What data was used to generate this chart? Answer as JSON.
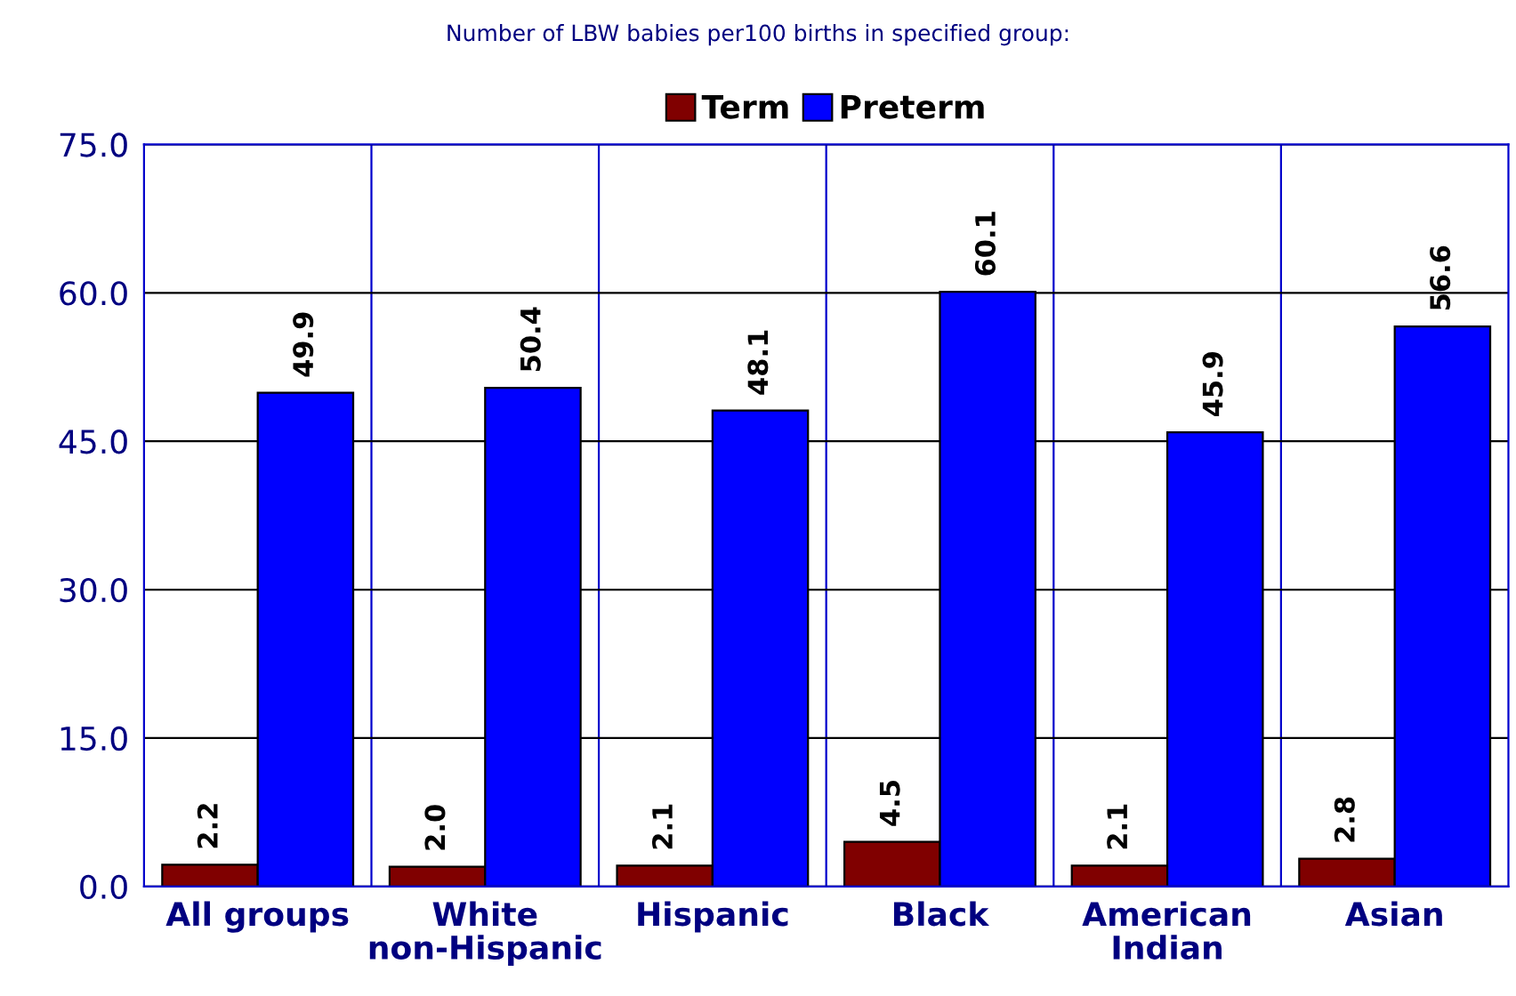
{
  "chart_data": {
    "type": "bar",
    "title": "Number of LBW babies per100 births in specified group:",
    "categories": [
      "All groups",
      "White\nnon-Hispanic",
      "Hispanic",
      "Black",
      "American\nIndian",
      "Asian"
    ],
    "series": [
      {
        "name": "Term",
        "color": "#800000",
        "values": [
          2.2,
          2.0,
          2.1,
          4.5,
          2.1,
          2.8
        ],
        "value_labels": [
          "2.2",
          "2.0",
          "2.1",
          "4.5",
          "2.1",
          "2.8"
        ]
      },
      {
        "name": "Preterm",
        "color": "#0000ff",
        "values": [
          49.9,
          50.4,
          48.1,
          60.1,
          45.9,
          56.6
        ],
        "value_labels": [
          "49.9",
          "50.4",
          "48.1",
          "60.1",
          "45.9",
          "56.6"
        ]
      }
    ],
    "ylim": [
      0,
      75
    ],
    "yticks": [
      {
        "value": 0,
        "label": "0.0"
      },
      {
        "value": 15,
        "label": "15.0"
      },
      {
        "value": 30,
        "label": "30.0"
      },
      {
        "value": 45,
        "label": "45.0"
      },
      {
        "value": 60,
        "label": "60.0"
      },
      {
        "value": 75,
        "label": "75.0"
      }
    ],
    "grid": true,
    "legend": "top"
  }
}
